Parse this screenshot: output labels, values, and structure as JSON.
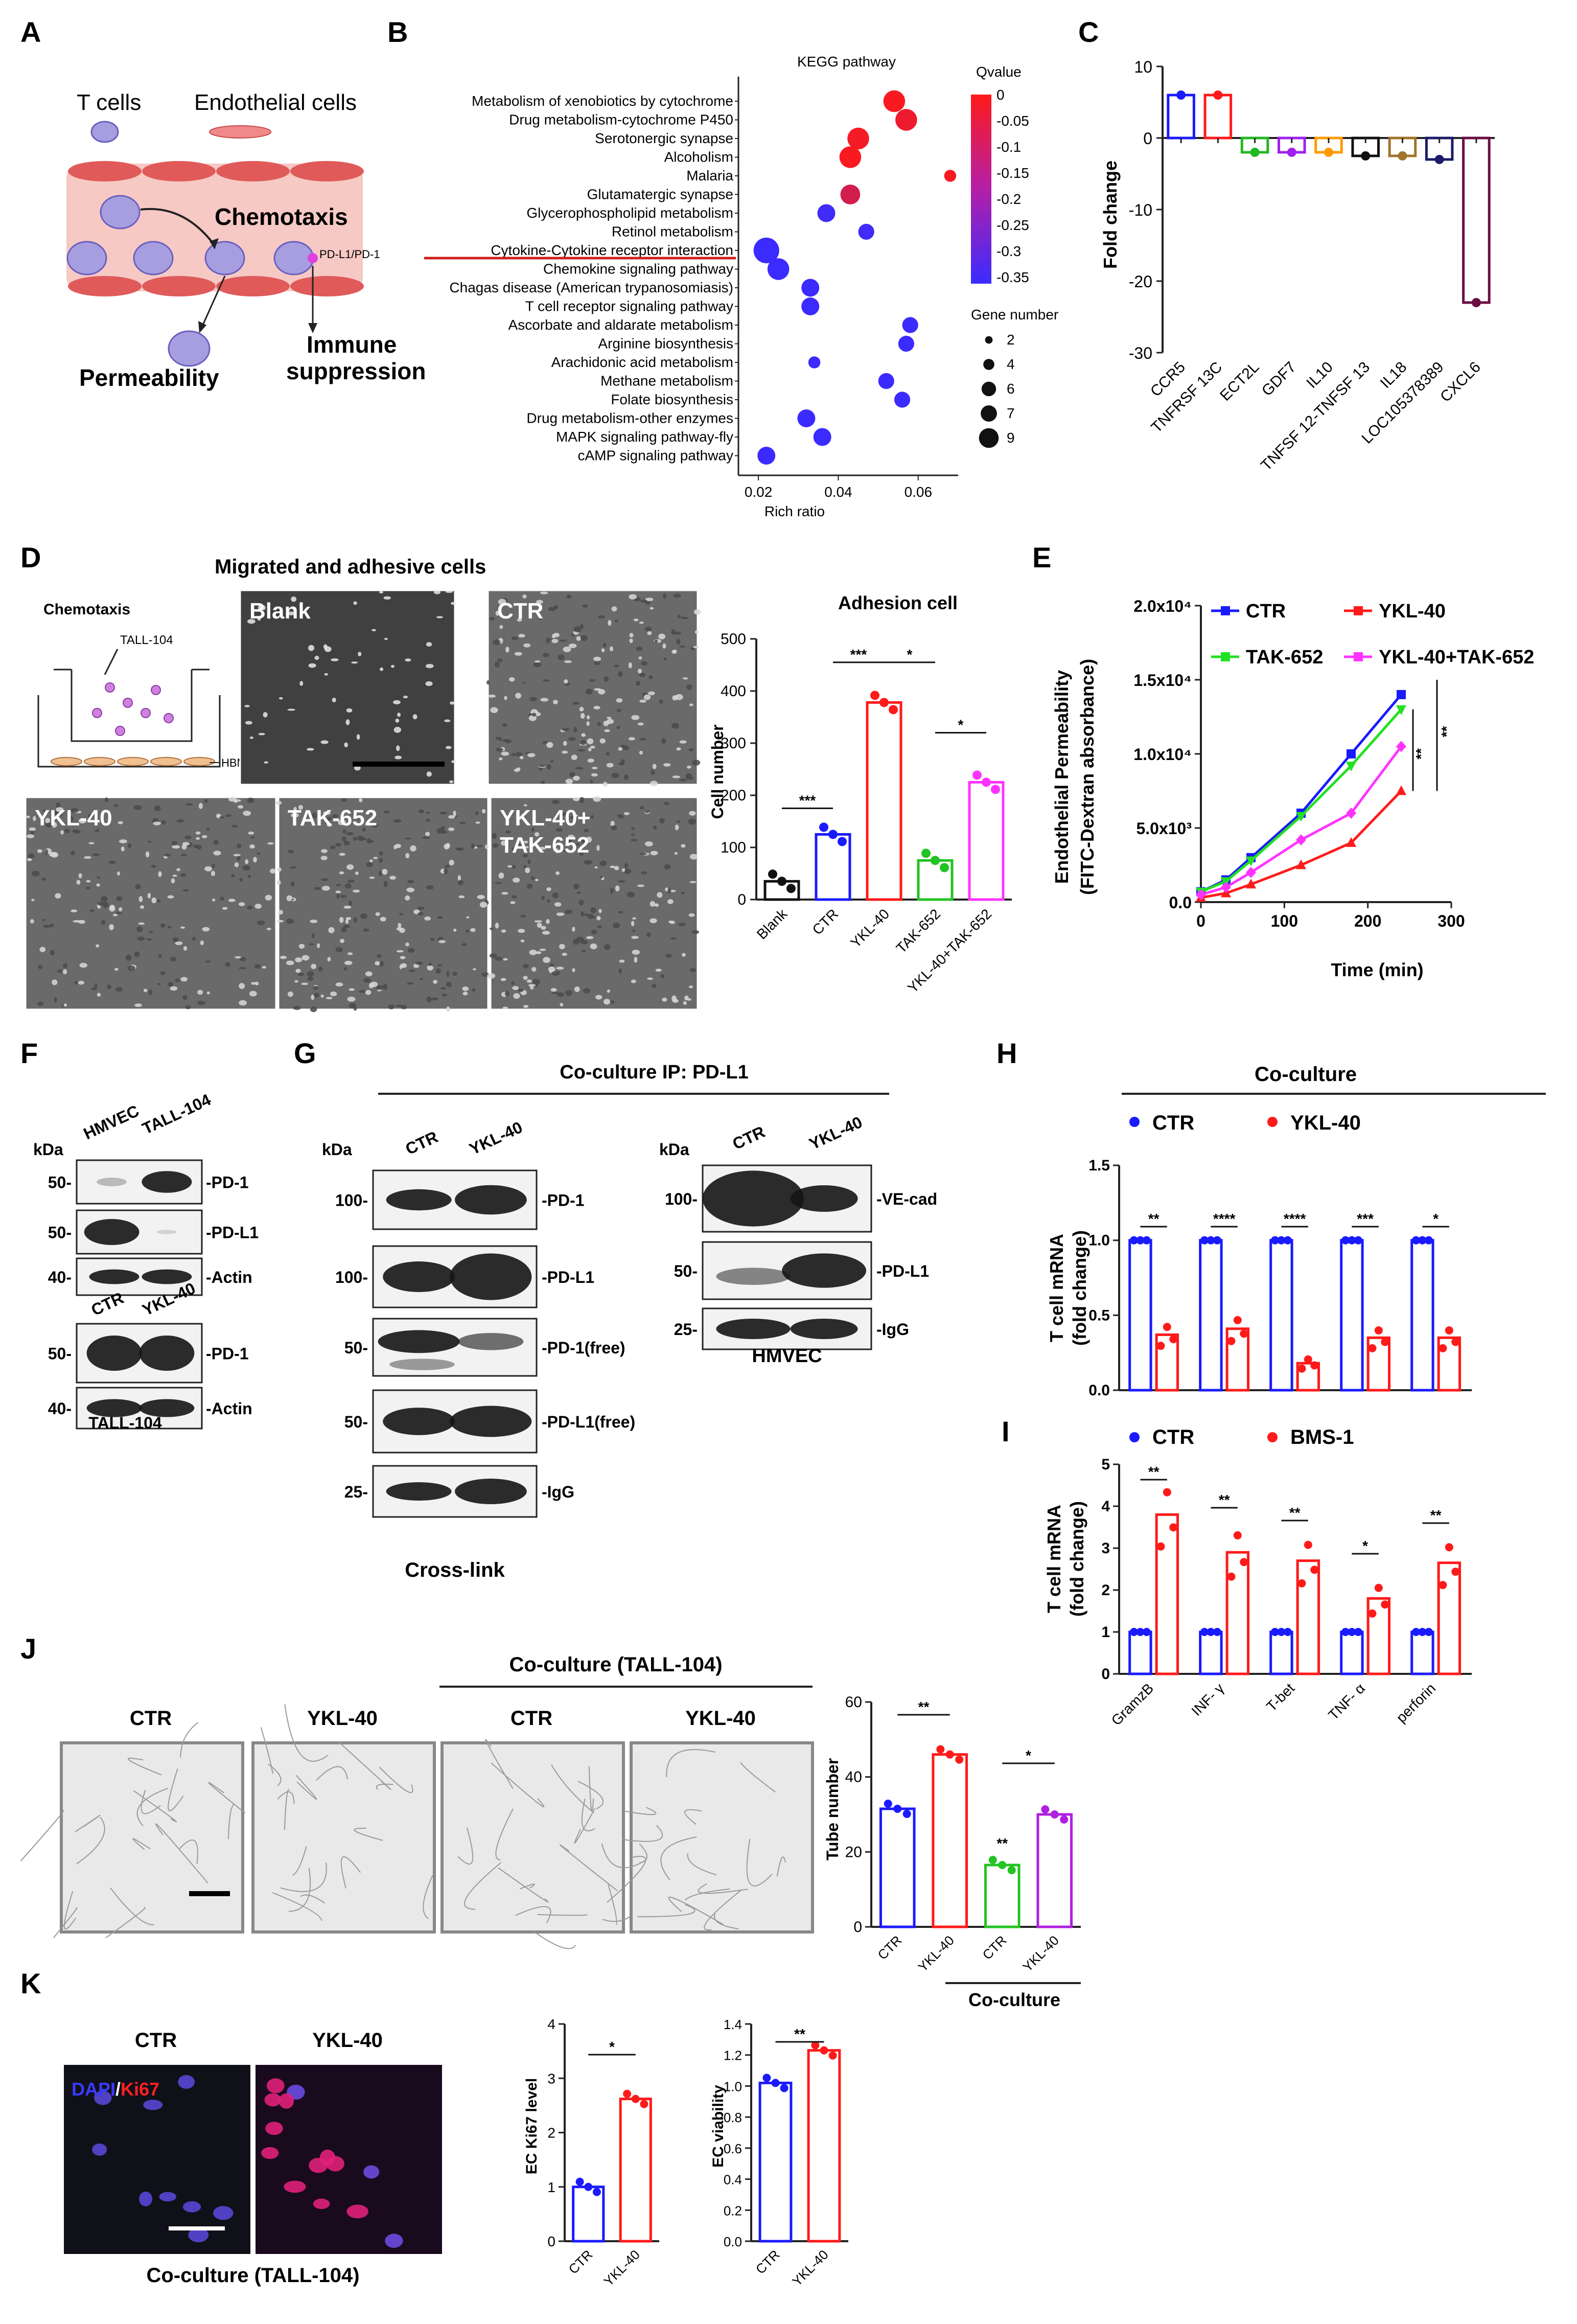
{
  "panels": [
    "A",
    "B",
    "C",
    "D",
    "E",
    "F",
    "G",
    "H",
    "I",
    "J",
    "K"
  ],
  "a": {
    "tcells": "T cells",
    "ec": "Endothelial cells",
    "chemotaxis": "Chemotaxis",
    "pdl1": "PD-L1/PD-1",
    "permeability": "Permeability",
    "immune1": "Immune",
    "immune2": "suppression"
  },
  "b": {
    "chart_data": {
      "type": "scatter",
      "title": "KEGG pathway",
      "xlabel": "Rich ratio",
      "xlim": [
        0.015,
        0.07
      ],
      "xticks": [
        "0.02",
        "0.04",
        "0.06"
      ],
      "pathways": [
        "Metabolism of xenobiotics by cytochrome",
        "Drug metabolism-cytochrome P450",
        "Serotonergic synapse",
        "Alcoholism",
        "Malaria",
        "Glutamatergic synapse",
        "Glycerophospholipid metabolism",
        "Retinol metabolism",
        "Cytokine-Cytokine receptor interaction",
        "Chemokine signaling pathway",
        "Chagas disease (American trypanosomiasis)",
        "T cell receptor signaling pathway",
        "Ascorbate and aldarate metabolism",
        "Arginine biosynthesis",
        "Arachidonic acid metabolism",
        "Methane metabolism",
        "Folate biosynthesis",
        "Drug metabolism-other enzymes",
        "MAPK signaling pathway-fly",
        "cAMP signaling pathway"
      ],
      "rich_ratio": [
        0.054,
        0.057,
        0.045,
        0.043,
        0.068,
        0.043,
        0.037,
        0.047,
        0.022,
        0.025,
        0.033,
        0.033,
        0.058,
        0.057,
        0.034,
        0.052,
        0.056,
        0.032,
        0.036,
        0.022
      ],
      "qvalue": [
        -0.01,
        -0.03,
        -0.02,
        -0.01,
        -0.01,
        -0.08,
        -0.34,
        -0.34,
        -0.35,
        -0.35,
        -0.35,
        -0.35,
        -0.35,
        -0.35,
        -0.35,
        -0.35,
        -0.35,
        -0.35,
        -0.35,
        -0.35
      ],
      "gene_number": [
        7,
        7,
        7,
        7,
        2,
        6,
        5,
        4,
        9,
        7,
        5,
        5,
        4,
        4,
        2,
        4,
        4,
        5,
        5,
        5
      ],
      "highlight": "Cytokine-Cytokine receptor interaction",
      "legend": {
        "q_title": "Qvalue",
        "q_ticks": [
          "0",
          "-0.05",
          "-0.1",
          "-0.15",
          "-0.2",
          "-0.25",
          "-0.3",
          "-0.35"
        ],
        "q_colors": [
          "#ff1a1a",
          "#3b2bff"
        ],
        "g_title": "Gene number",
        "g_ticks": [
          "2",
          "4",
          "6",
          "7",
          "9"
        ]
      }
    }
  },
  "c": {
    "chart_data": {
      "type": "bar",
      "ylabel": "Fold change",
      "ylim": [
        -30,
        10
      ],
      "yticks": [
        "10",
        "0",
        "-10",
        "-20",
        "-30"
      ],
      "categories": [
        "CCR5",
        "TNFRSF 13C",
        "ECT2L",
        "GDF7",
        "IL10",
        "TNFSF 12-TNFSF 13",
        "IL18",
        "LOC105378389",
        "CXCL6"
      ],
      "values": [
        6,
        6,
        -2,
        -2,
        -2,
        -2.5,
        -2.5,
        -3,
        -23
      ],
      "colors": [
        "#1a1aff",
        "#ff1a1a",
        "#22b822",
        "#a020f0",
        "#ff9900",
        "#111111",
        "#a0742a",
        "#1b1b6a",
        "#6a0f40"
      ]
    }
  },
  "d": {
    "title": "Migrated and adhesive cells",
    "chemotaxis": "Chemotaxis",
    "tall104": "TALL-104",
    "hbmec": "HBMEC",
    "images": [
      "Blank",
      "CTR",
      "YKL-40",
      "TAK-652",
      "YKL-40+",
      "TAK-652"
    ],
    "chart_data": {
      "type": "bar",
      "title": "Adhesion cell",
      "ylabel": "Cell number",
      "ylim": [
        0,
        500
      ],
      "yticks": [
        "0",
        "100",
        "200",
        "300",
        "400",
        "500"
      ],
      "categories": [
        "Blank",
        "CTR",
        "YKL-40",
        "TAK-652",
        "YKL-40+TAK-652"
      ],
      "values": [
        35,
        125,
        378,
        75,
        225
      ],
      "colors": [
        "#111111",
        "#1a1aff",
        "#ff1a1a",
        "#22c322",
        "#ff33ff"
      ],
      "sig": [
        "***",
        "***",
        "*",
        "*"
      ]
    }
  },
  "e": {
    "chart_data": {
      "type": "line",
      "xlabel": "Time (min)",
      "ylabel1": "Endothelial Permeability",
      "ylabel2": "(FITC-Dextran absorbance)",
      "xlim": [
        0,
        300
      ],
      "ylim": [
        0,
        20000
      ],
      "xticks": [
        "0",
        "100",
        "200",
        "300"
      ],
      "yticks": [
        "0.0",
        "5.0x10³",
        "1.0x10⁴",
        "1.5x10⁴",
        "2.0x10⁴"
      ],
      "x": [
        0,
        30,
        60,
        120,
        180,
        240
      ],
      "series": [
        {
          "name": "CTR",
          "values": [
            700,
            1500,
            3000,
            6000,
            10000,
            14000
          ],
          "color": "#1a1aff",
          "marker": "square"
        },
        {
          "name": "YKL-40",
          "values": [
            300,
            600,
            1200,
            2500,
            4000,
            7500
          ],
          "color": "#ff1a1a",
          "marker": "triangle"
        },
        {
          "name": "TAK-652",
          "values": [
            700,
            1400,
            2800,
            5800,
            9200,
            13000
          ],
          "color": "#22e022",
          "marker": "triangle-down"
        },
        {
          "name": "YKL-40+TAK-652",
          "values": [
            500,
            1000,
            2000,
            4200,
            6000,
            10500
          ],
          "color": "#ff33ff",
          "marker": "diamond"
        }
      ],
      "sig": [
        "**",
        "**"
      ]
    }
  },
  "f": {
    "kda": "kDa",
    "lanes1": [
      "HMVEC",
      "TALL-104"
    ],
    "mw1": [
      "50-",
      "50-",
      "40-"
    ],
    "bands1": [
      "-PD-1",
      "-PD-L1",
      "-Actin"
    ],
    "lanes2": [
      "CTR",
      "YKL-40"
    ],
    "mw2": [
      "50-",
      "40-"
    ],
    "bands2": [
      "-PD-1",
      "-Actin"
    ],
    "caption": "TALL-104"
  },
  "g": {
    "title": "Co-culture IP: PD-L1",
    "kda": "kDa",
    "lanes": [
      "CTR",
      "YKL-40"
    ],
    "mw_left": [
      "100-",
      "100-",
      "50-",
      "50-",
      "25-"
    ],
    "bands_left": [
      "-PD-1",
      "-PD-L1",
      "-PD-1(free)",
      "-PD-L1(free)",
      "-IgG"
    ],
    "caption_left": "Cross-link",
    "mw_right": [
      "100-",
      "50-",
      "25-"
    ],
    "bands_right": [
      "-VE-cad",
      "-PD-L1",
      "-IgG"
    ],
    "caption_right": "HMVEC"
  },
  "h": {
    "title": "Co-culture",
    "legend": [
      "CTR",
      "YKL-40"
    ],
    "chart_data": {
      "type": "bar",
      "ylabel1": "T cell mRNA",
      "ylabel2": "(fold change)",
      "ylim": [
        0,
        1.5
      ],
      "yticks": [
        "0.0",
        "0.5",
        "1.0",
        "1.5"
      ],
      "series": [
        {
          "name": "CTR",
          "values": [
            1,
            1,
            1,
            1,
            1
          ],
          "color": "#1a1aff"
        },
        {
          "name": "YKL-40",
          "values": [
            0.37,
            0.41,
            0.18,
            0.35,
            0.35
          ],
          "color": "#ff1a1a"
        }
      ],
      "sig": [
        "**",
        "****",
        "****",
        "***",
        "*"
      ]
    }
  },
  "i": {
    "legend": [
      "CTR",
      "BMS-1"
    ],
    "chart_data": {
      "type": "bar",
      "ylabel1": "T cell mRNA",
      "ylabel2": "(fold change)",
      "ylim": [
        0,
        5
      ],
      "yticks": [
        "0",
        "1",
        "2",
        "3",
        "4",
        "5"
      ],
      "categories": [
        "GramzB",
        "INF- γ",
        "T-bet",
        "TNF- α",
        "perforin"
      ],
      "series": [
        {
          "name": "CTR",
          "values": [
            1,
            1,
            1,
            1,
            1
          ],
          "color": "#1a1aff"
        },
        {
          "name": "BMS-1",
          "values": [
            3.8,
            2.9,
            2.7,
            1.8,
            2.65
          ],
          "color": "#ff1a1a"
        }
      ],
      "sig": [
        "**",
        "**",
        "**",
        "*",
        "**"
      ]
    }
  },
  "j": {
    "coculture": "Co-culture (TALL-104)",
    "images": [
      "CTR",
      "YKL-40",
      "CTR",
      "YKL-40"
    ],
    "group": "Co-culture",
    "chart_data": {
      "type": "bar",
      "ylabel": "Tube number",
      "ylim": [
        0,
        60
      ],
      "yticks": [
        "0",
        "20",
        "40",
        "60"
      ],
      "categories": [
        "CTR",
        "YKL-40",
        "CTR",
        "YKL-40"
      ],
      "values": [
        31.5,
        46,
        16.5,
        30
      ],
      "colors": [
        "#1a1aff",
        "#ff1a1a",
        "#22c322",
        "#b020e0"
      ],
      "sig": [
        "**",
        "*",
        "**"
      ]
    }
  },
  "k": {
    "images": [
      "CTR",
      "YKL-40"
    ],
    "stain1": "DAPI",
    "slash": "/",
    "stain2": "Ki67",
    "caption": "Co-culture (TALL-104)",
    "chart1": {
      "type": "bar",
      "ylabel": "EC Ki67 level",
      "ylim": [
        0,
        4
      ],
      "yticks": [
        "0",
        "1",
        "2",
        "3",
        "4"
      ],
      "categories": [
        "CTR",
        "YKL-40"
      ],
      "values": [
        1.0,
        2.62
      ],
      "colors": [
        "#1a1aff",
        "#ff1a1a"
      ],
      "sig": "*"
    },
    "chart2": {
      "type": "bar",
      "ylabel": "EC viability",
      "ylim": [
        0,
        1.4
      ],
      "yticks": [
        "0.0",
        "0.2",
        "0.4",
        "0.6",
        "0.8",
        "1.0",
        "1.2",
        "1.4"
      ],
      "categories": [
        "CTR",
        "YKL-40"
      ],
      "values": [
        1.02,
        1.23
      ],
      "colors": [
        "#1a1aff",
        "#ff1a1a"
      ],
      "sig": "**"
    }
  }
}
